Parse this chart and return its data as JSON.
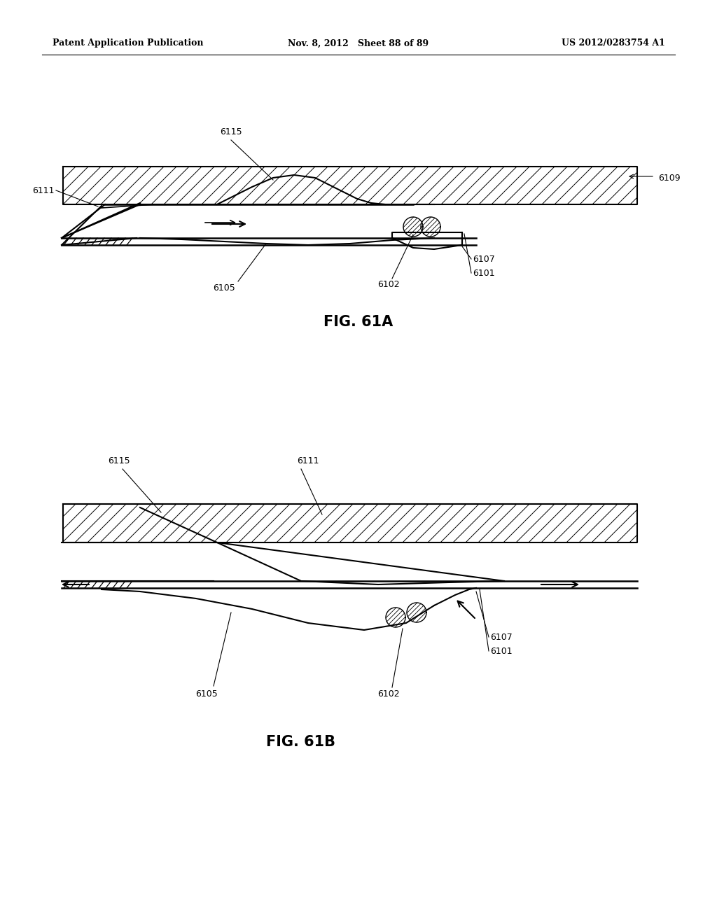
{
  "bg_color": "#ffffff",
  "header_left": "Patent Application Publication",
  "header_mid": "Nov. 8, 2012   Sheet 88 of 89",
  "header_right": "US 2012/0283754 A1",
  "fig_61a_label": "FIG. 61A",
  "fig_61b_label": "FIG. 61B",
  "fontsize_header": 9,
  "fontsize_label": 9,
  "fontsize_caption": 15
}
